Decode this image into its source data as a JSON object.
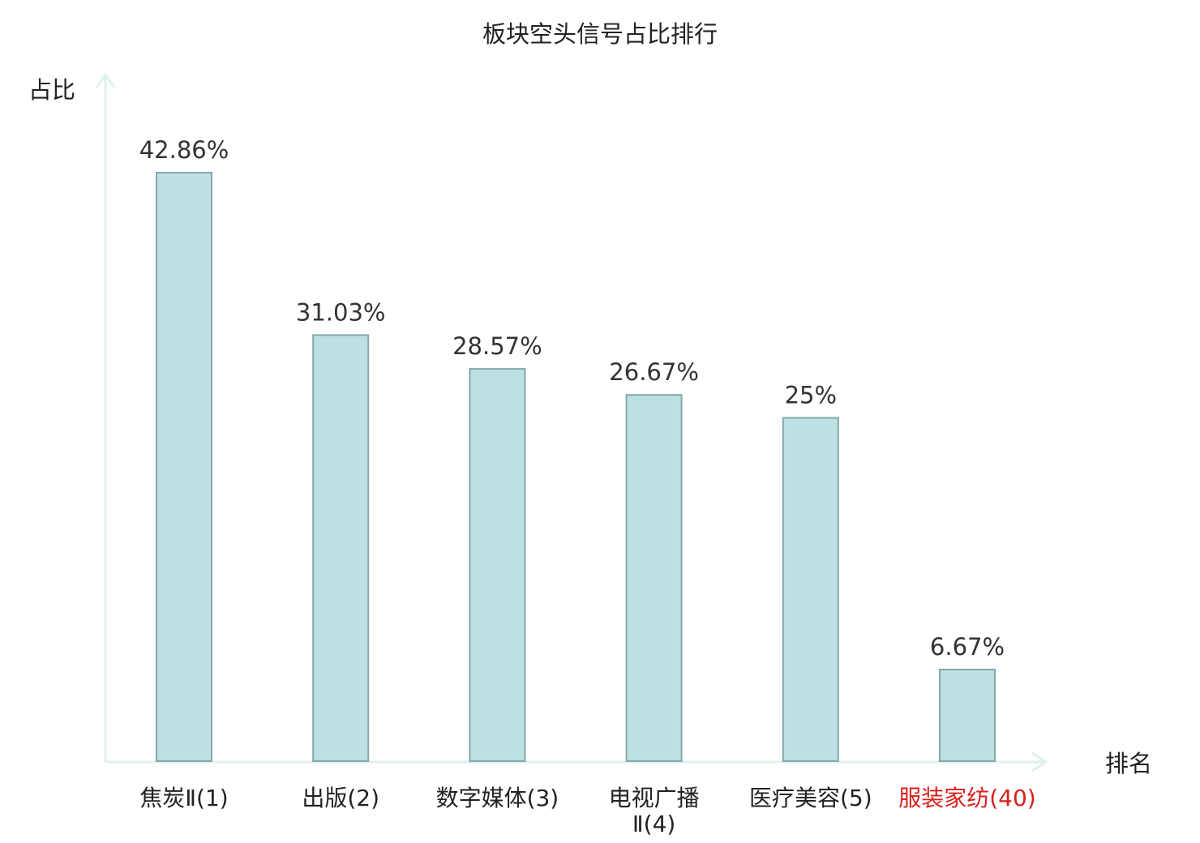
{
  "chart_data": {
    "type": "bar",
    "title": "板块空头信号占比排行",
    "ylabel": "占比",
    "xlabel": "排名",
    "categories": [
      {
        "label": "焦炭Ⅱ(1)",
        "lines": [
          "焦炭Ⅱ(1)"
        ],
        "highlight": false
      },
      {
        "label": "出版(2)",
        "lines": [
          "出版(2)"
        ],
        "highlight": false
      },
      {
        "label": "数字媒体(3)",
        "lines": [
          "数字媒体(3)"
        ],
        "highlight": false
      },
      {
        "label": "电视广播Ⅱ(4)",
        "lines": [
          "电视广播",
          "Ⅱ(4)"
        ],
        "highlight": false
      },
      {
        "label": "医疗美容(5)",
        "lines": [
          "医疗美容(5)"
        ],
        "highlight": false
      },
      {
        "label": "服装家纺(40)",
        "lines": [
          "服装家纺(40)"
        ],
        "highlight": true
      }
    ],
    "values": [
      42.86,
      31.03,
      28.57,
      26.67,
      25,
      6.67
    ],
    "value_labels": [
      "42.86%",
      "31.03%",
      "28.57%",
      "26.67%",
      "25%",
      "6.67%"
    ],
    "ylim": [
      0,
      50
    ],
    "grid": false,
    "legend": "none",
    "colors": {
      "bar_fill": "#bde1e3",
      "bar_stroke": "#85a8aa",
      "axis": "#dff1ef",
      "text": "#222222",
      "highlight_text": "#d9201c"
    }
  }
}
